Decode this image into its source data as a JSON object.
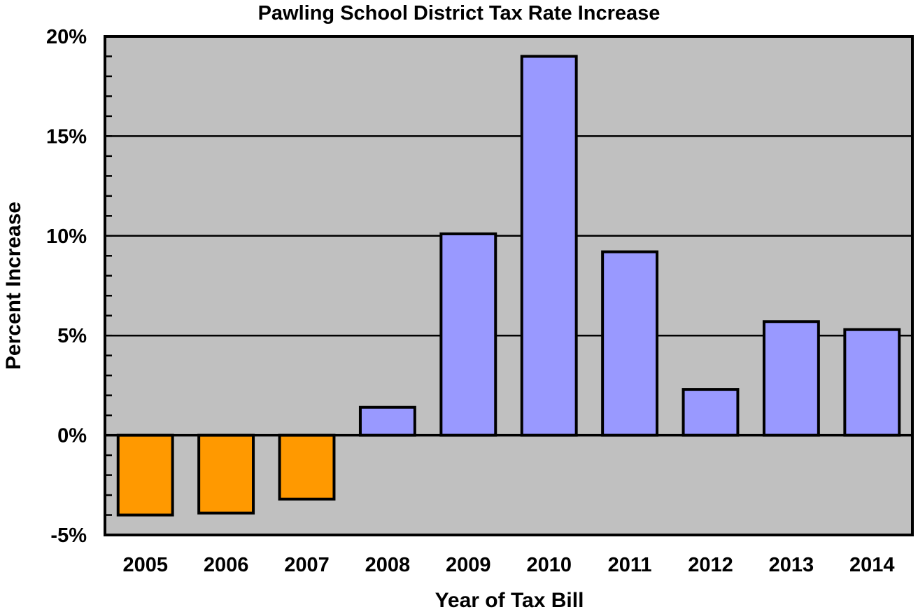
{
  "chart_data": {
    "type": "bar",
    "title": "Pawling School District Tax Rate Increase",
    "xlabel": "Year of Tax Bill",
    "ylabel": "Percent Increase",
    "categories": [
      "2005",
      "2006",
      "2007",
      "2008",
      "2009",
      "2010",
      "2011",
      "2012",
      "2013",
      "2014"
    ],
    "values": [
      -4.0,
      -3.9,
      -3.2,
      1.4,
      10.1,
      19.0,
      9.2,
      2.3,
      5.7,
      5.3
    ],
    "ylim": [
      -5,
      20
    ],
    "yticks": [
      -5,
      0,
      5,
      10,
      15,
      20
    ],
    "ytick_labels": [
      "-5%",
      "0%",
      "5%",
      "10%",
      "15%",
      "20%"
    ],
    "grid": true,
    "legend": "none",
    "colors": {
      "negative": "#FF9900",
      "positive": "#9999FF",
      "plot_background": "#C0C0C0",
      "outline": "#000000"
    }
  }
}
